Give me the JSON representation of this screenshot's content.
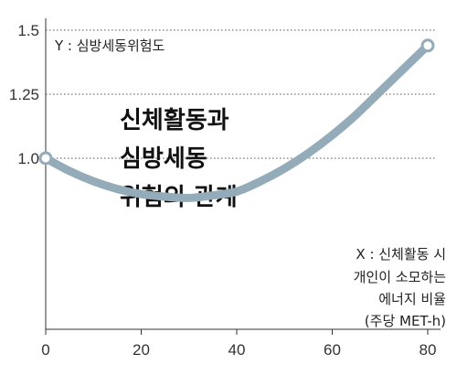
{
  "chart_data": {
    "type": "line",
    "title_lines": [
      "신체활동과",
      "심방세동",
      "위험의 관계"
    ],
    "ylabel": "Y : 심방세동위험도",
    "xlabel_lines": [
      "X : 신체활동 시",
      "개인이 소모하는",
      "에너지 비율",
      "(주당 MET-h)"
    ],
    "x_ticks": [
      "0",
      "20",
      "40",
      "60",
      "80"
    ],
    "y_ticks": [
      "1.5",
      "1.25",
      "1.0"
    ],
    "x_range": [
      0,
      80
    ],
    "y_range": [
      0.75,
      1.5
    ],
    "grid": "horizontal dotted",
    "series": [
      {
        "x": [
          0,
          5,
          10,
          15,
          20,
          25,
          30,
          35,
          40,
          45,
          50,
          55,
          60,
          65,
          70,
          75,
          80
        ],
        "y": [
          1.0,
          0.95,
          0.91,
          0.88,
          0.86,
          0.85,
          0.845,
          0.855,
          0.87,
          0.91,
          0.96,
          1.02,
          1.09,
          1.17,
          1.26,
          1.35,
          1.44
        ]
      }
    ],
    "line_color": "#94acb9",
    "marker_fill": "#ffffff"
  }
}
